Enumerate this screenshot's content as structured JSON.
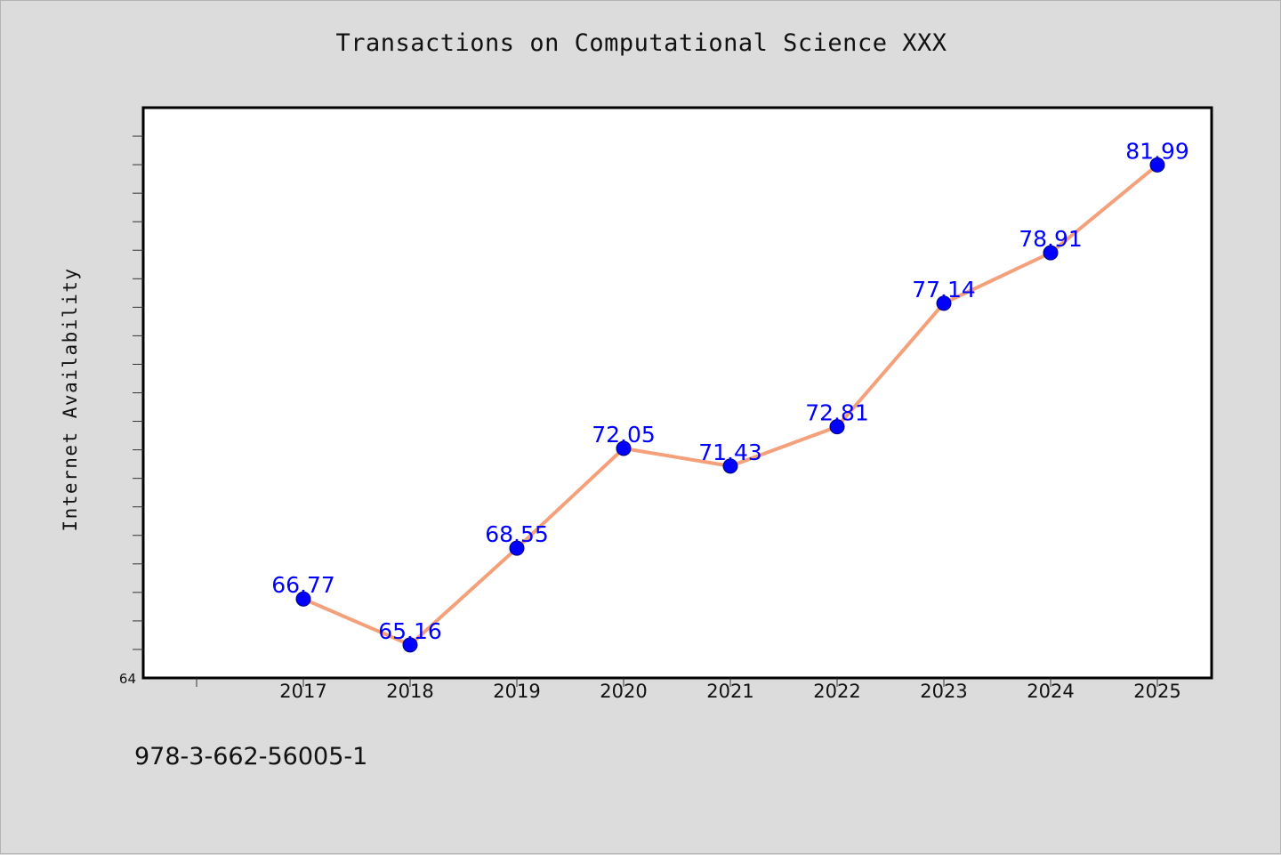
{
  "chart_data": {
    "type": "line",
    "title": "Transactions on Computational Science XXX",
    "ylabel": "Internet Availability",
    "xlabel": "",
    "categories": [
      "2017",
      "2018",
      "2019",
      "2020",
      "2021",
      "2022",
      "2023",
      "2024",
      "2025"
    ],
    "series": [
      {
        "values": [
          66.77,
          65.16,
          68.55,
          72.05,
          71.43,
          72.81,
          77.14,
          78.91,
          81.99
        ],
        "labels": [
          "66.77",
          "65.16",
          "68.55",
          "72.05",
          "71.43",
          "72.81",
          "77.14",
          "78.91",
          "81.99"
        ]
      }
    ],
    "ylim": [
      64,
      84
    ],
    "y_tick_labels": [
      "64"
    ],
    "grid": false,
    "line_color": "#f4a07a",
    "marker_color": "#0000ff",
    "label_color": "#0000ff"
  },
  "footer": {
    "isbn": "978-3-662-56005-1"
  }
}
